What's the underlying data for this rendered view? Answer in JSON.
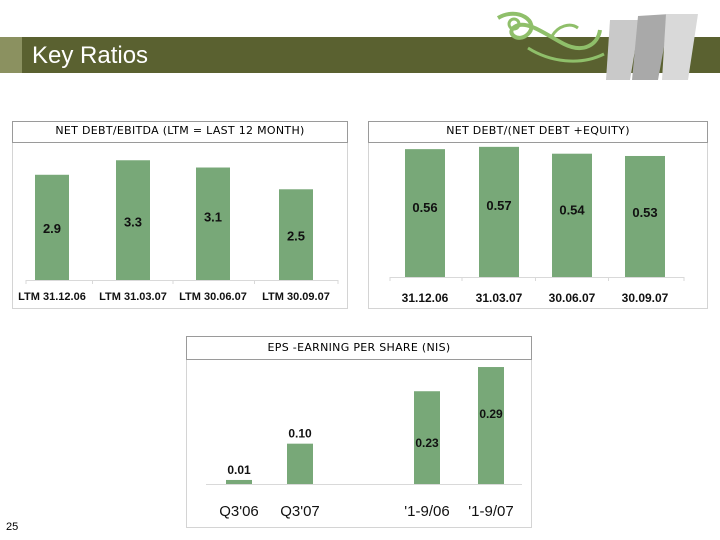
{
  "slide": {
    "title": "Key Ratios",
    "page_number": "25"
  },
  "colors": {
    "title_bar": "#5a6130",
    "bar_fill": "#78a878",
    "logo_green": "#8fbf6a"
  },
  "chart_data": [
    {
      "type": "bar",
      "title": "NET DEBT/EBITDA  (LTM = LAST 12 MONTH)",
      "categories": [
        "LTM 31.12.06",
        "LTM 31.03.07",
        "LTM 30.06.07",
        "LTM 30.09.07"
      ],
      "values": [
        2.9,
        3.3,
        3.1,
        2.5
      ],
      "labels": [
        "2.9",
        "3.3",
        "3.1",
        "2.5"
      ],
      "ylim": [
        0,
        3.5
      ],
      "grid": false,
      "legend": "none"
    },
    {
      "type": "bar",
      "title": "NET DEBT/(NET DEBT +EQUITY)",
      "categories": [
        "31.12.06",
        "31.03.07",
        "30.06.07",
        "30.09.07"
      ],
      "values": [
        0.56,
        0.57,
        0.54,
        0.53
      ],
      "labels": [
        "0.56",
        "0.57",
        "0.54",
        "0.53"
      ],
      "ylim": [
        0,
        0.6
      ],
      "grid": false,
      "legend": "none"
    },
    {
      "type": "bar",
      "title": "EPS -EARNING PER SHARE (NIS)",
      "categories": [
        "Q3'06",
        "Q3'07",
        "'1-9/06",
        "'1-9/07"
      ],
      "values": [
        0.01,
        0.1,
        0.23,
        0.29
      ],
      "labels": [
        "0.01",
        "0.10",
        "0.23",
        "0.29"
      ],
      "ylim": [
        0,
        0.3
      ],
      "grid": false,
      "legend": "none"
    }
  ]
}
